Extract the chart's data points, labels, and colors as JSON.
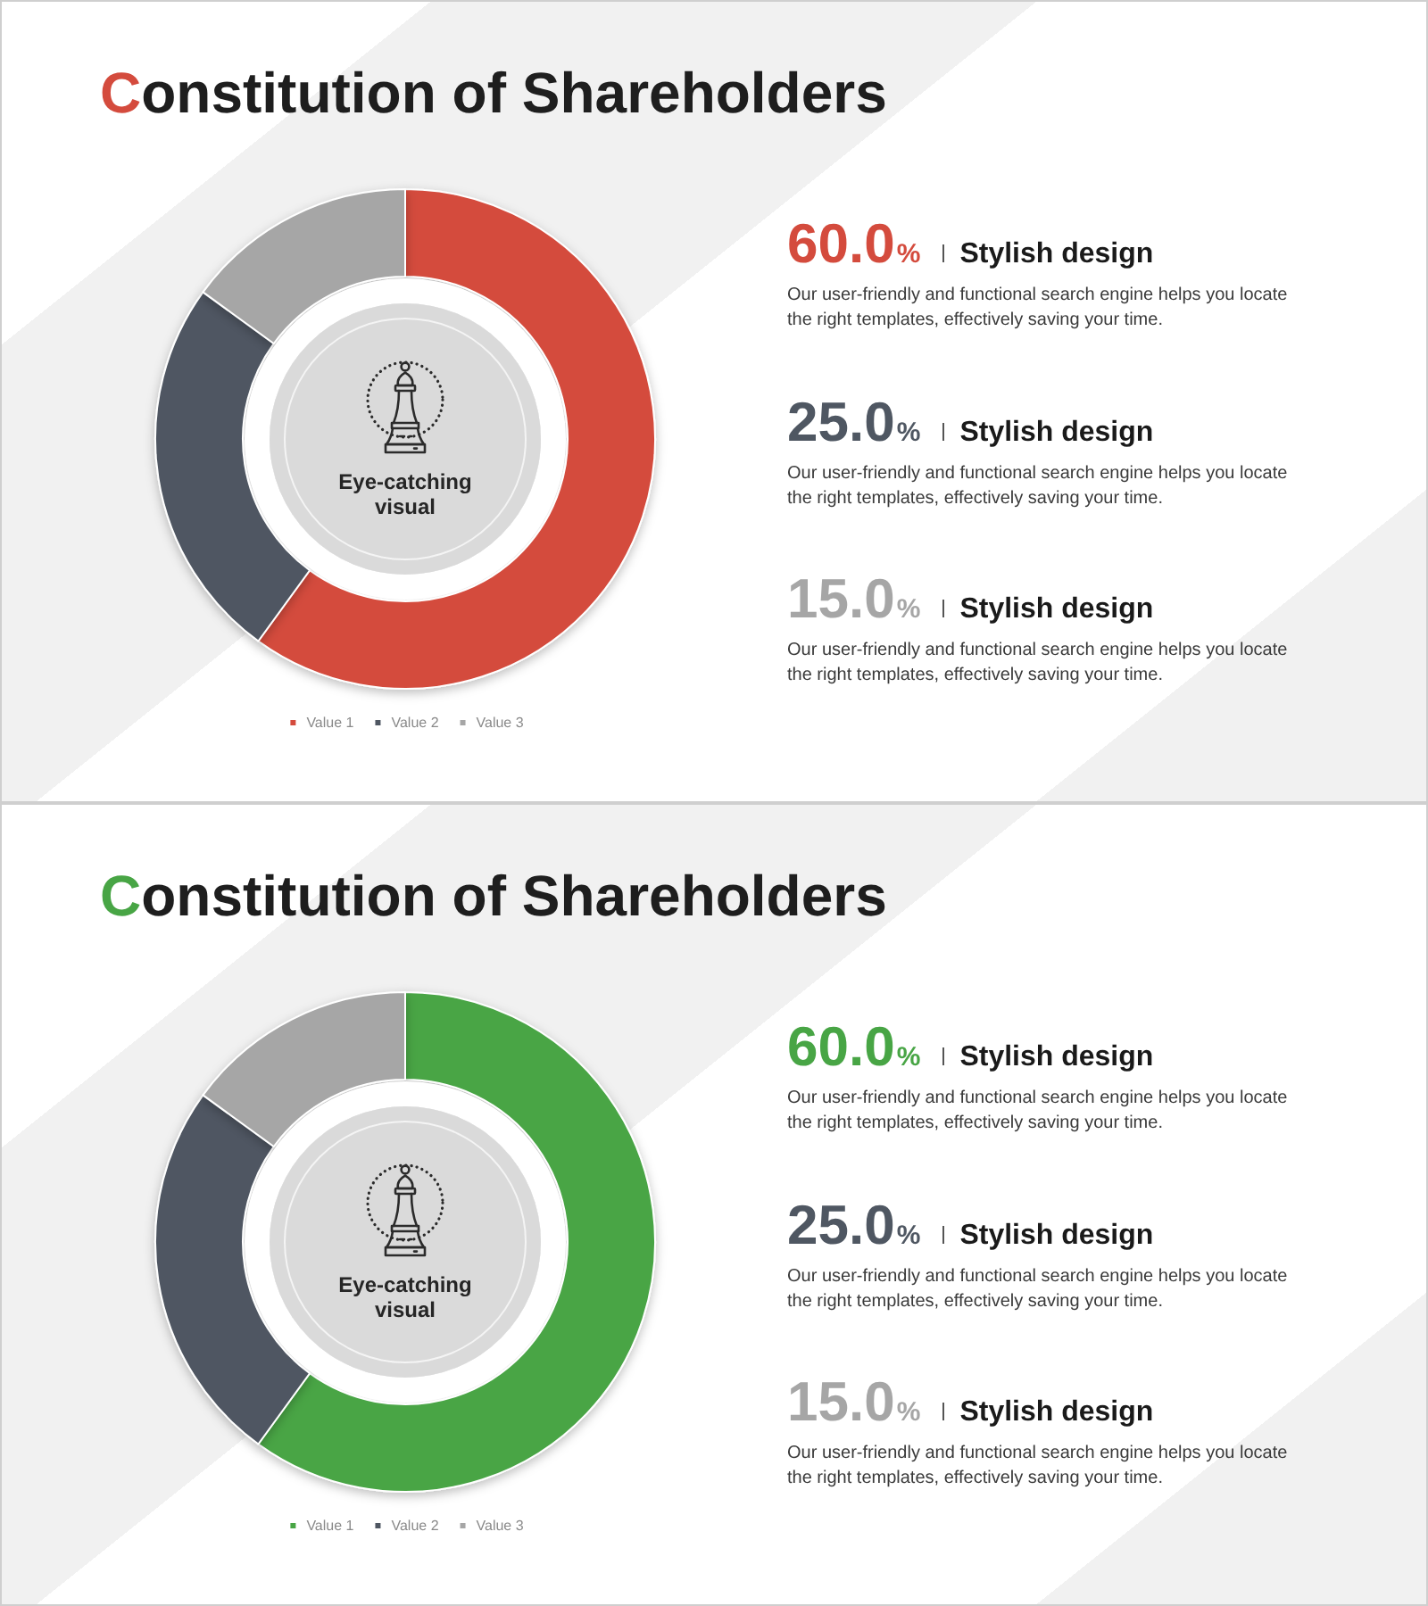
{
  "chart_data": [
    {
      "type": "donut",
      "title": "Constitution of Shareholders",
      "categories": [
        "Value 1",
        "Value 2",
        "Value 3"
      ],
      "values": [
        60,
        25,
        15
      ],
      "colors": [
        "#d44b3d",
        "#4f5762",
        "#a6a6a6"
      ],
      "legend": "bottom",
      "annotations": [
        "Eye-catching visual",
        "60.0%",
        "Stylish design",
        "Our user-friendly and functional search engine helps you locate the right templates, effectively saving your time.",
        "25.0%",
        "Stylish design",
        "Our user-friendly and functional search engine helps you locate the right templates, effectively saving your time.",
        "15.0%",
        "Stylish design",
        "Our user-friendly and functional search engine helps you locate the right templates, effectively saving your time."
      ]
    },
    {
      "type": "donut",
      "title": "Constitution of Shareholders",
      "categories": [
        "Value 1",
        "Value 2",
        "Value 3"
      ],
      "values": [
        60,
        25,
        15
      ],
      "colors": [
        "#48a545",
        "#4f5762",
        "#a6a6a6"
      ],
      "legend": "bottom",
      "annotations": [
        "Eye-catching visual",
        "60.0%",
        "Stylish design",
        "Our user-friendly and functional search engine helps you locate the right templates, effectively saving your time.",
        "25.0%",
        "Stylish design",
        "Our user-friendly and functional search engine helps you locate the right templates, effectively saving your time.",
        "15.0%",
        "Stylish design",
        "Our user-friendly and functional search engine helps you locate the right templates, effectively saving your time."
      ]
    }
  ]
}
